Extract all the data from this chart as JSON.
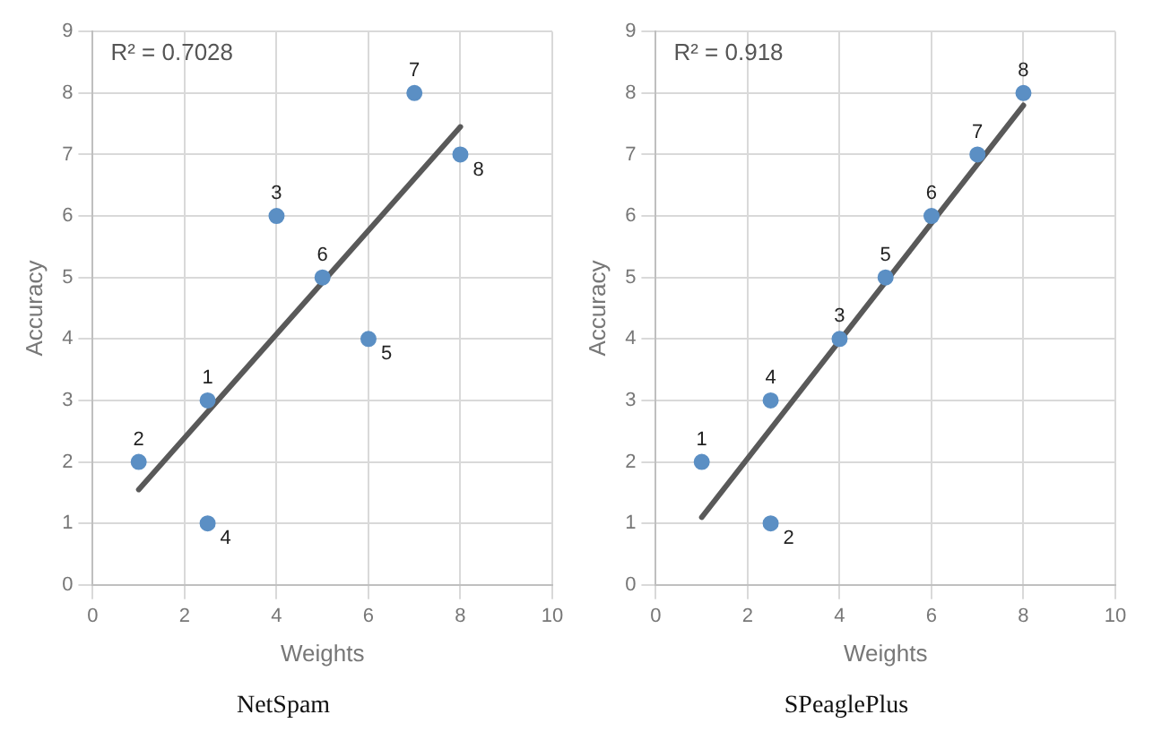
{
  "chart_data": [
    {
      "type": "scatter",
      "title": "NetSpam",
      "xlabel": "Weights",
      "ylabel": "Accuracy",
      "xlim": [
        0,
        10
      ],
      "xticks": [
        0,
        2,
        4,
        6,
        8,
        10
      ],
      "ylim": [
        0,
        9
      ],
      "yticks": [
        0,
        1,
        2,
        3,
        4,
        5,
        6,
        7,
        8,
        9
      ],
      "grid": true,
      "legend": false,
      "annotations": [
        "R² = 0.7028",
        {
          "text": "1",
          "x": 2.5,
          "y": 3
        },
        {
          "text": "2",
          "x": 1,
          "y": 2
        },
        {
          "text": "3",
          "x": 4,
          "y": 6
        },
        {
          "text": "4",
          "x": 2.5,
          "y": 1
        },
        {
          "text": "5",
          "x": 6,
          "y": 4
        },
        {
          "text": "6",
          "x": 5,
          "y": 5
        },
        {
          "text": "7",
          "x": 7,
          "y": 8
        },
        {
          "text": "8",
          "x": 8,
          "y": 7
        }
      ],
      "series": [
        {
          "color": "#5b8fc4",
          "marker": "circle",
          "x": [
            2.5,
            1,
            4,
            2.5,
            6,
            5,
            7,
            8
          ],
          "values": [
            3,
            2,
            6,
            1,
            4,
            5,
            8,
            7
          ]
        },
        {
          "type": "line",
          "color": "#595959",
          "marker": "none",
          "x": [
            1,
            8
          ],
          "values": [
            1.55,
            7.45
          ]
        }
      ]
    },
    {
      "type": "scatter",
      "title": "SPeaglePlus",
      "xlabel": "Weights",
      "ylabel": "Accuracy",
      "xlim": [
        0,
        10
      ],
      "xticks": [
        0,
        2,
        4,
        6,
        8,
        10
      ],
      "ylim": [
        0,
        9
      ],
      "yticks": [
        0,
        1,
        2,
        3,
        4,
        5,
        6,
        7,
        8,
        9
      ],
      "grid": true,
      "legend": false,
      "annotations": [
        "R² = 0.918",
        {
          "text": "1",
          "x": 1,
          "y": 2
        },
        {
          "text": "2",
          "x": 2.5,
          "y": 1
        },
        {
          "text": "3",
          "x": 4,
          "y": 4
        },
        {
          "text": "4",
          "x": 2.5,
          "y": 3
        },
        {
          "text": "5",
          "x": 5,
          "y": 5
        },
        {
          "text": "6",
          "x": 6,
          "y": 6
        },
        {
          "text": "7",
          "x": 7,
          "y": 7
        },
        {
          "text": "8",
          "x": 8,
          "y": 8
        }
      ],
      "series": [
        {
          "color": "#5b8fc4",
          "marker": "circle",
          "x": [
            1,
            2.5,
            4,
            2.5,
            5,
            6,
            7,
            8
          ],
          "values": [
            2,
            1,
            4,
            3,
            5,
            6,
            7,
            8
          ]
        },
        {
          "type": "line",
          "color": "#595959",
          "marker": "none",
          "x": [
            1,
            8
          ],
          "values": [
            1.1,
            7.8
          ]
        }
      ]
    }
  ]
}
